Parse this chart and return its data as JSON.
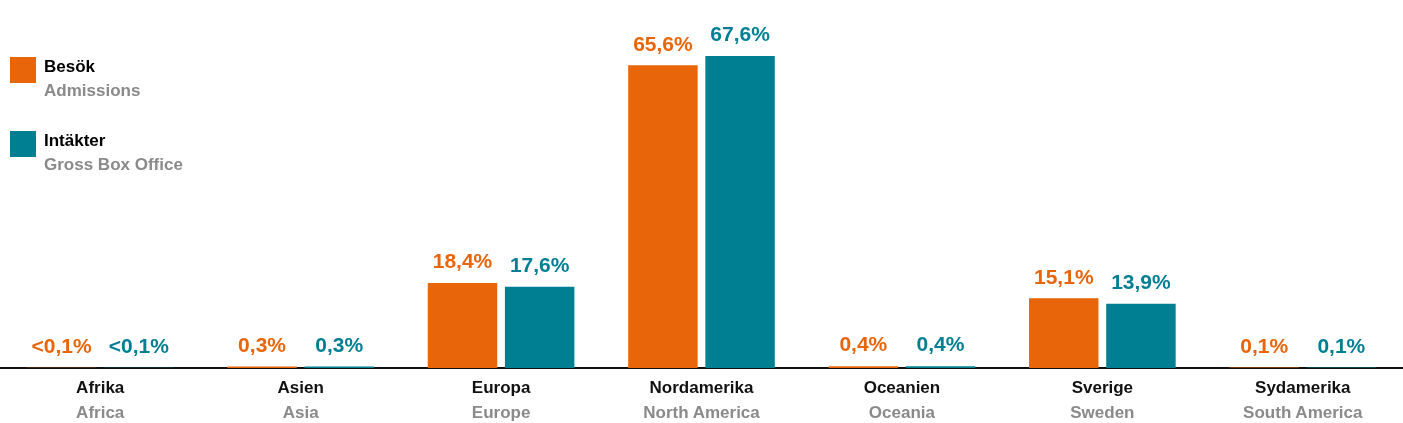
{
  "chart_data": {
    "type": "bar",
    "categories": [
      "Afrika\nAfrica",
      "Asien\nAsia",
      "Europa\nEurope",
      "Nordamerika\nNorth America",
      "Oceanien\nOceania",
      "Sverige\nSweden",
      "Sydamerika\nSouth America"
    ],
    "series": [
      {
        "name": "Besök\nAdmissions",
        "color": "#e8650a",
        "values": [
          0.05,
          0.3,
          18.4,
          65.6,
          0.4,
          15.1,
          0.1
        ],
        "value_labels": [
          "<0,1%",
          "0,3%",
          "18,4%",
          "65,6%",
          "0,4%",
          "15,1%",
          "0,1%"
        ]
      },
      {
        "name": "Intäkter\nGross Box Office",
        "color": "#007f93",
        "values": [
          0.05,
          0.3,
          17.6,
          67.6,
          0.4,
          13.9,
          0.1
        ],
        "value_labels": [
          "<0,1%",
          "0,3%",
          "17,6%",
          "67,6%",
          "0,4%",
          "13,9%",
          "0,1%"
        ]
      }
    ],
    "tick_labels": "x",
    "grid": false,
    "legend": "top left"
  }
}
